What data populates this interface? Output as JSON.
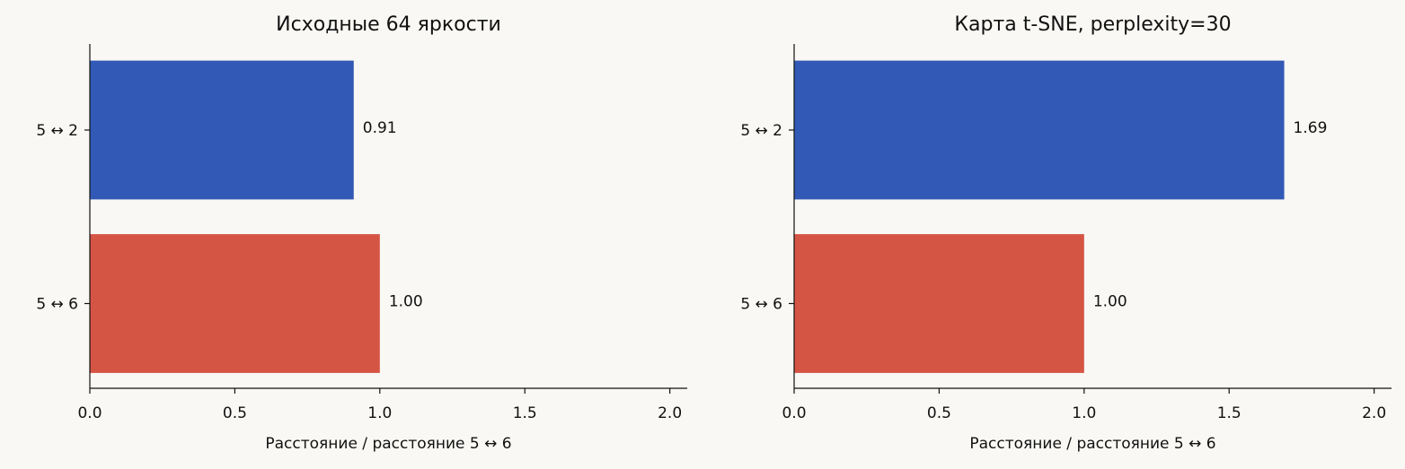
{
  "chart_data": [
    {
      "type": "bar",
      "orientation": "horizontal",
      "title": "Исходные 64 яркости",
      "xlabel": "Расстояние / расстояние 5 ↔ 6",
      "categories": [
        "5 ↔ 2",
        "5 ↔ 6"
      ],
      "values": [
        0.91,
        1.0
      ],
      "value_labels": [
        "0.91",
        "1.00"
      ],
      "colors": [
        "#3259b5",
        "#d55545"
      ],
      "xlim": [
        0,
        2.06
      ],
      "xticks": [
        {
          "value": 0,
          "label": "0.0"
        },
        0.5,
        {
          "value": 1,
          "label": "1.0"
        },
        1.5,
        {
          "value": 2,
          "label": "2.0"
        }
      ]
    },
    {
      "type": "bar",
      "orientation": "horizontal",
      "title": "Карта t-SNE, perplexity=30",
      "xlabel": "Расстояние / расстояние 5 ↔ 6",
      "categories": [
        "5 ↔ 2",
        "5 ↔ 6"
      ],
      "values": [
        1.69,
        1.0
      ],
      "value_labels": [
        "1.69",
        "1.00"
      ],
      "colors": [
        "#3259b5",
        "#d55545"
      ],
      "xlim": [
        0,
        2.06
      ],
      "xticks": [
        {
          "value": 0,
          "label": "0.0"
        },
        0.5,
        {
          "value": 1,
          "label": "1.0"
        },
        1.5,
        {
          "value": 2,
          "label": "2.0"
        }
      ]
    }
  ]
}
